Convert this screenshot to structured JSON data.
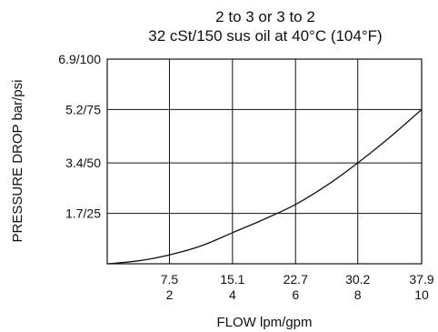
{
  "chart_data": {
    "type": "line",
    "title": "2 to 3 or 3 to 2",
    "subtitle": "32 cSt/150 sus oil at 40°C (104°F)",
    "xlabel": "FLOW lpm/gpm",
    "ylabel": "PRESSURE DROP bar/psi",
    "x_ticks": [
      {
        "value": 7.5,
        "label_top": "7.5",
        "label_bottom": "2"
      },
      {
        "value": 15.1,
        "label_top": "15.1",
        "label_bottom": "4"
      },
      {
        "value": 22.7,
        "label_top": "22.7",
        "label_bottom": "6"
      },
      {
        "value": 30.2,
        "label_top": "30.2",
        "label_bottom": "8"
      },
      {
        "value": 37.9,
        "label_top": "37.9",
        "label_bottom": "10"
      }
    ],
    "y_ticks": [
      {
        "value": 1.7,
        "label": "1.7/25"
      },
      {
        "value": 3.4,
        "label": "3.4/50"
      },
      {
        "value": 5.2,
        "label": "5.2/75"
      },
      {
        "value": 6.9,
        "label": "6.9/100"
      }
    ],
    "xlim": [
      0,
      37.9
    ],
    "ylim": [
      0,
      6.9
    ],
    "grid": true,
    "series": [
      {
        "x": [
          0,
          3.8,
          7.5,
          11.3,
          15.1,
          18.9,
          22.7,
          26.5,
          30.2,
          34.0,
          37.9
        ],
        "y": [
          0,
          0.1,
          0.3,
          0.6,
          1.05,
          1.5,
          2.0,
          2.65,
          3.4,
          4.25,
          5.2
        ]
      }
    ]
  }
}
